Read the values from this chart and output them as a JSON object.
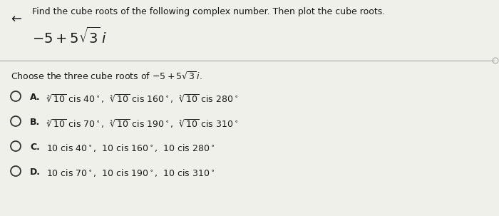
{
  "title": "Find the cube roots of the following complex number. Then plot the cube roots.",
  "expression_latex": "$-5+5\\sqrt{3}\\,i$",
  "question_latex": "Choose the three cube roots of $-5+5\\sqrt{3}\\,i$.",
  "options": [
    {
      "label": "A.",
      "text_latex": "$\\sqrt[3]{10}$ cis 40$^\\circ$,  $\\sqrt[3]{10}$ cis 160$^\\circ$,  $\\sqrt[3]{10}$ cis 280$^\\circ$"
    },
    {
      "label": "B.",
      "text_latex": "$\\sqrt[3]{10}$ cis 70$^\\circ$,  $\\sqrt[3]{10}$ cis 190$^\\circ$,  $\\sqrt[3]{10}$ cis 310$^\\circ$"
    },
    {
      "label": "C.",
      "text_latex": "10 cis 40$^\\circ$,  10 cis 160$^\\circ$,  10 cis 280$^\\circ$"
    },
    {
      "label": "D.",
      "text_latex": "10 cis 70$^\\circ$,  10 cis 190$^\\circ$,  10 cis 310$^\\circ$"
    }
  ],
  "bg_color": "#f0f0eb",
  "text_color": "#1a1a1a",
  "back_arrow": "←",
  "divider_color": "#aaaaaa",
  "radio_color": "#333333"
}
